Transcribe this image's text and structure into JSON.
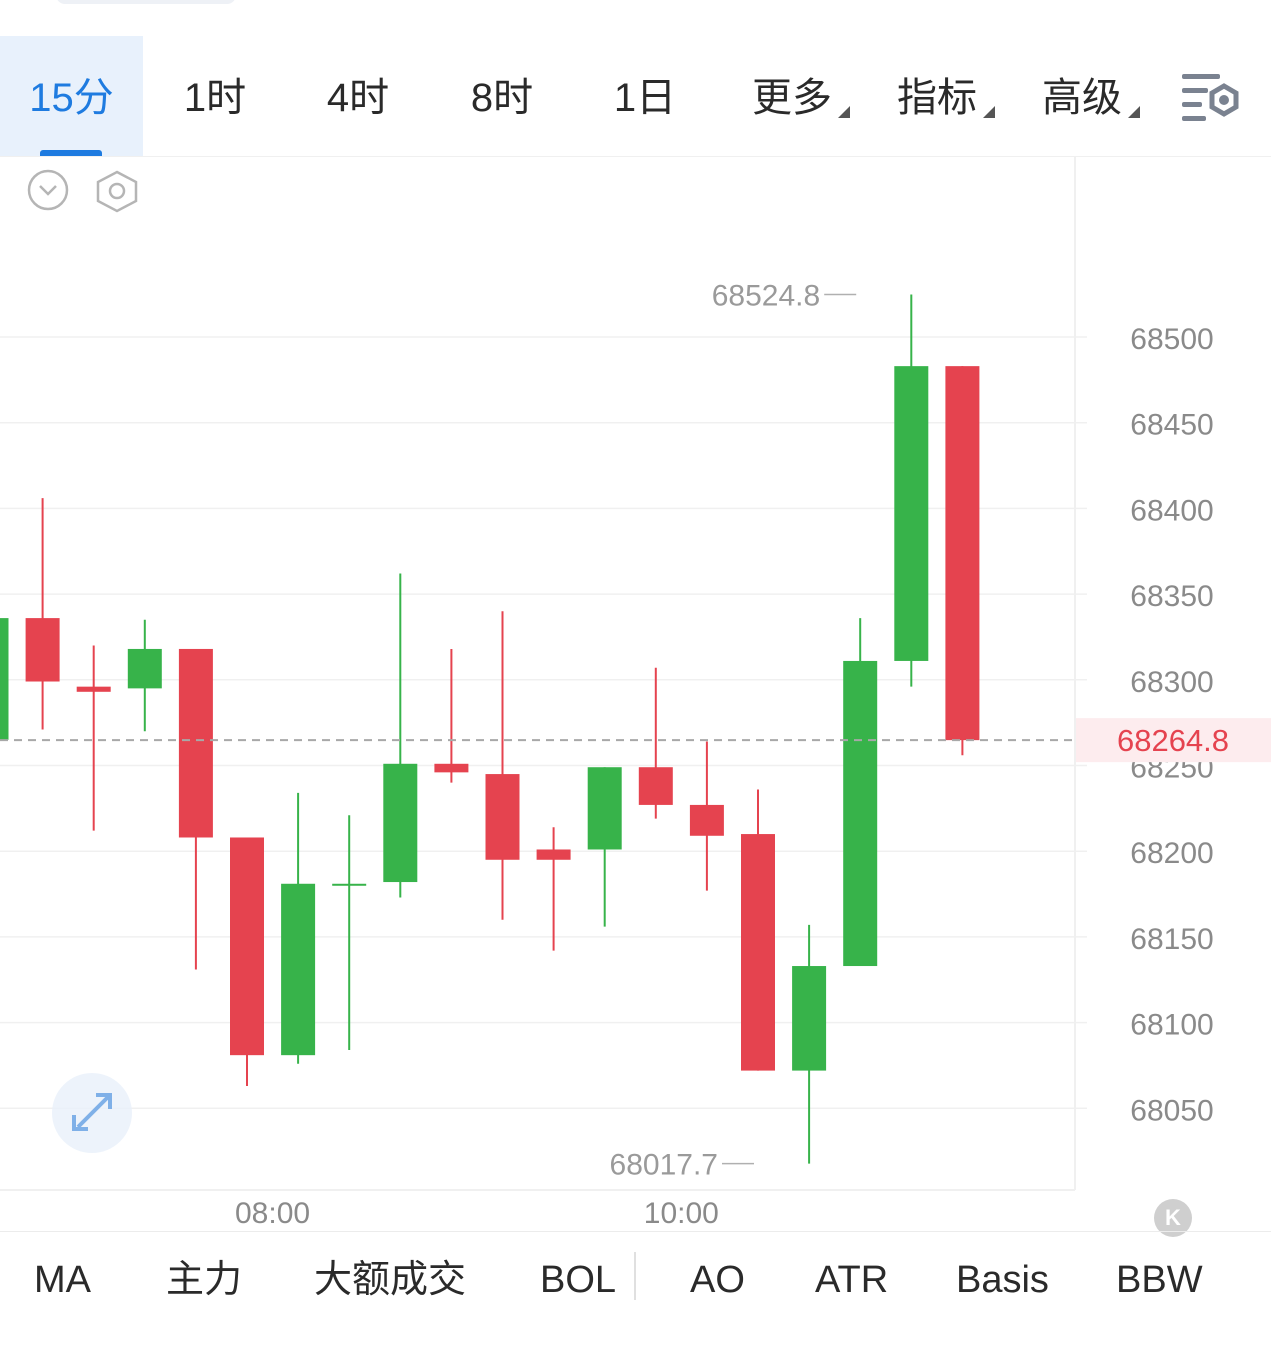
{
  "tabs": [
    {
      "label": "15分",
      "active": true
    },
    {
      "label": "1时",
      "active": false
    },
    {
      "label": "4时",
      "active": false
    },
    {
      "label": "8时",
      "active": false
    },
    {
      "label": "1日",
      "active": false
    },
    {
      "label": "更多",
      "active": false,
      "dropdown": true
    },
    {
      "label": "指标",
      "active": false,
      "dropdown": true
    },
    {
      "label": "高级",
      "active": false,
      "dropdown": true
    }
  ],
  "icons": {
    "chart_settings": "chart-settings-icon",
    "collapse": "chevron-down-circle-icon",
    "hexagon": "hexagon-settings-icon",
    "expand": "expand-arrows-icon",
    "k_badge": "k-logo-icon"
  },
  "k_badge_text": "K",
  "colors": {
    "up": "#37b34a",
    "down": "#e5434f",
    "accent": "#1e7be0",
    "current_price": "#e5434f",
    "grid": "#f0f0f0",
    "axis_text": "#8a8a8a"
  },
  "chart_data": {
    "type": "candlestick",
    "y_axis_ticks": [
      68500,
      68450,
      68400,
      68350,
      68300,
      68250,
      68200,
      68150,
      68100,
      68050
    ],
    "x_axis_ticks": [
      {
        "label": "08:00",
        "index": 5.5
      },
      {
        "label": "10:00",
        "index": 13.5
      }
    ],
    "current_price": "68264.8",
    "high_label": "68524.8",
    "low_label": "68017.7",
    "high_label_index": 17,
    "low_label_index": 15,
    "grid": true,
    "candles": [
      {
        "o": 68265,
        "h": 68336,
        "l": 68260,
        "c": 68336
      },
      {
        "o": 68336,
        "h": 68406,
        "l": 68271,
        "c": 68299
      },
      {
        "o": 68296,
        "h": 68320,
        "l": 68212,
        "c": 68293
      },
      {
        "o": 68295,
        "h": 68335,
        "l": 68270,
        "c": 68318
      },
      {
        "o": 68318,
        "h": 68318,
        "l": 68131,
        "c": 68208
      },
      {
        "o": 68208,
        "h": 68208,
        "l": 68063,
        "c": 68081
      },
      {
        "o": 68081,
        "h": 68234,
        "l": 68076,
        "c": 68181
      },
      {
        "o": 68181,
        "h": 68221,
        "l": 68084,
        "c": 68181
      },
      {
        "o": 68182,
        "h": 68362,
        "l": 68173,
        "c": 68251
      },
      {
        "o": 68251,
        "h": 68318,
        "l": 68240,
        "c": 68246
      },
      {
        "o": 68245,
        "h": 68340,
        "l": 68160,
        "c": 68195
      },
      {
        "o": 68201,
        "h": 68214,
        "l": 68142,
        "c": 68195
      },
      {
        "o": 68201,
        "h": 68249,
        "l": 68156,
        "c": 68249
      },
      {
        "o": 68249,
        "h": 68307,
        "l": 68219,
        "c": 68227
      },
      {
        "o": 68227,
        "h": 68264,
        "l": 68177,
        "c": 68209
      },
      {
        "o": 68210,
        "h": 68236,
        "l": 68072,
        "c": 68072
      },
      {
        "o": 68072,
        "h": 68157,
        "l": 68017.7,
        "c": 68133
      },
      {
        "o": 68133,
        "h": 68336,
        "l": 68133,
        "c": 68311
      },
      {
        "o": 68311,
        "h": 68524.8,
        "l": 68296,
        "c": 68483
      },
      {
        "o": 68483,
        "h": 68483,
        "l": 68256,
        "c": 68264.8
      }
    ]
  },
  "indicators": [
    "MA",
    "主力",
    "大额成交",
    "BOL",
    "AO",
    "ATR",
    "Basis",
    "BBW"
  ]
}
